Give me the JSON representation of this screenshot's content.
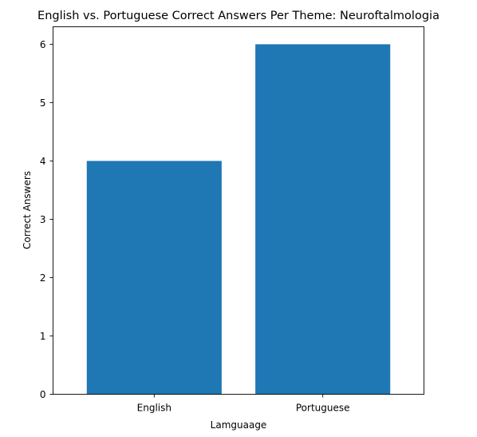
{
  "chart_data": {
    "type": "bar",
    "title": "English vs. Portuguese Correct Answers Per Theme: Neuroftalmologia",
    "xlabel": "Lamguaage",
    "ylabel": "Correct Answers",
    "categories": [
      "English",
      "Portuguese"
    ],
    "values": [
      4,
      6
    ],
    "ylim": [
      0,
      6.3
    ],
    "yticks": [
      "0",
      "1",
      "2",
      "3",
      "4",
      "5",
      "6"
    ],
    "bar_color": "#1f77b4",
    "grid": false,
    "legend": "none"
  }
}
